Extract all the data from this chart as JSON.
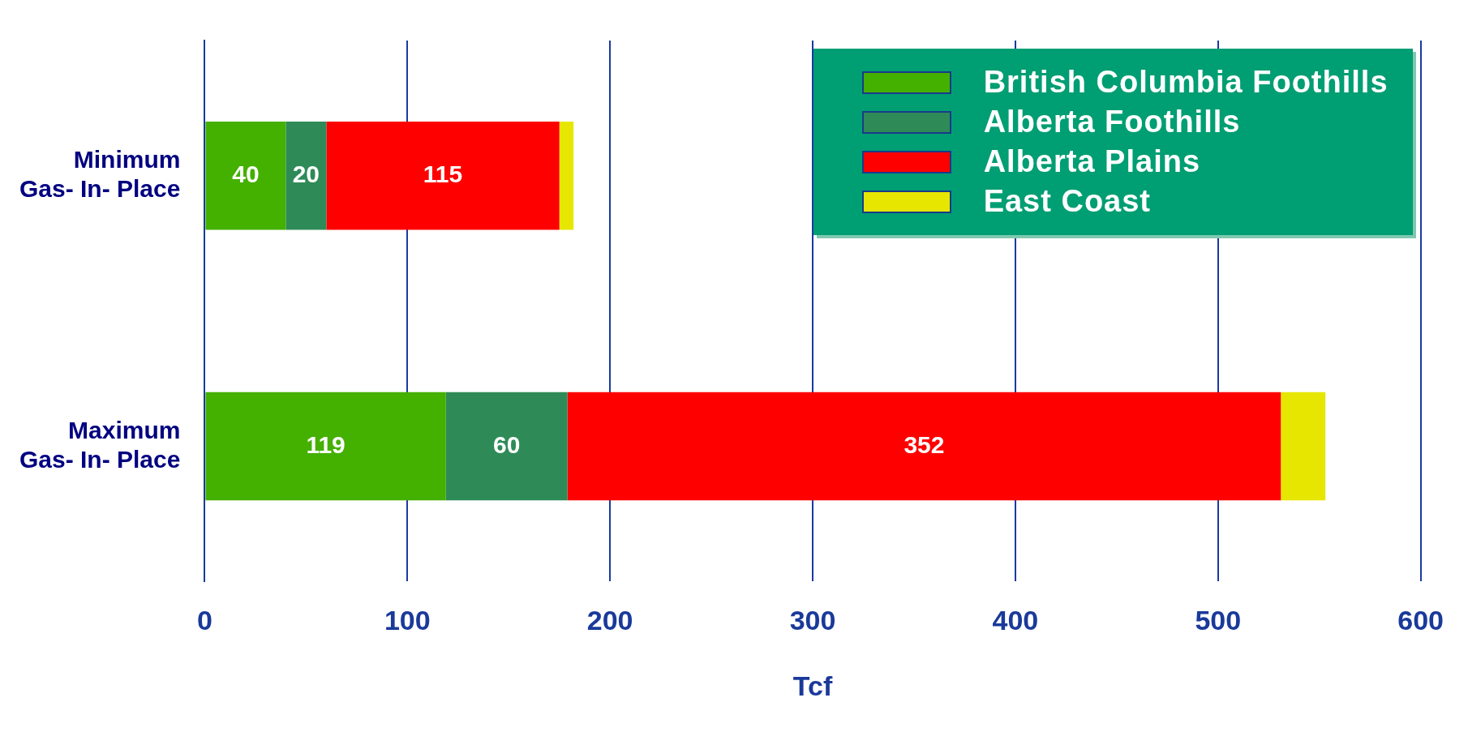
{
  "chart_data": {
    "type": "bar",
    "orientation": "horizontal",
    "stacked": true,
    "categories": [
      "Minimum Gas- In- Place",
      "Maximum Gas- In- Place"
    ],
    "series": [
      {
        "name": "British Columbia Foothills",
        "color": "#44b000",
        "values": [
          40,
          119
        ],
        "value_labels": [
          "40",
          "119"
        ]
      },
      {
        "name": "Alberta Foothills",
        "color": "#2e8b57",
        "values": [
          20,
          60
        ],
        "value_labels": [
          "20",
          "60"
        ]
      },
      {
        "name": "Alberta Plains",
        "color": "#ff0000",
        "values": [
          115,
          352
        ],
        "value_labels": [
          "115",
          "352"
        ]
      },
      {
        "name": "East Coast",
        "color": "#e6e600",
        "values": [
          7,
          22
        ]
      }
    ],
    "xlabel": "Tcf",
    "xlim": [
      0,
      600
    ],
    "xticks": [
      0,
      100,
      200,
      300,
      400,
      500,
      600
    ],
    "grid": "x",
    "legend": "top right"
  }
}
